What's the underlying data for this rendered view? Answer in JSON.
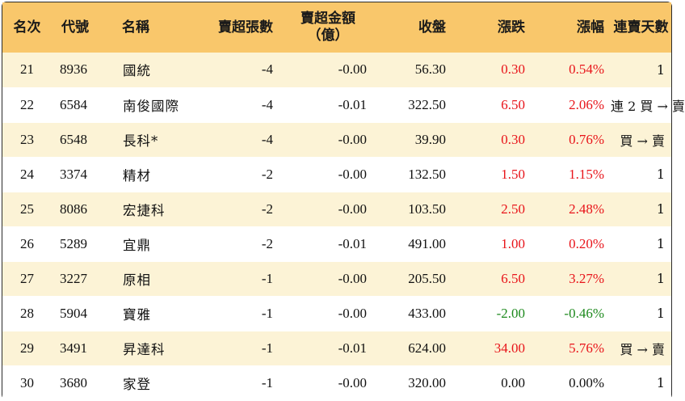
{
  "header": {
    "rank": "名次",
    "code": "代號",
    "name": "名稱",
    "net_sell_lots": "賣超張數",
    "net_sell_amount_line1": "賣超金額",
    "net_sell_amount_line2": "（億）",
    "close": "收盤",
    "change": "漲跌",
    "change_pct": "漲幅",
    "streak": "連賣天數"
  },
  "colors": {
    "header_bg": "#f9c76b",
    "row_alt_bg": "#fcf3d6",
    "up": "#e8141a",
    "down": "#1e8a1e"
  },
  "rows": [
    {
      "rank": "21",
      "code": "8936",
      "name": "國統",
      "lots": "-4",
      "amount": "-0.00",
      "close": "56.30",
      "change": "0.30",
      "pct": "0.54%",
      "streak": "1",
      "dir": "up"
    },
    {
      "rank": "22",
      "code": "6584",
      "name": "南俊國際",
      "lots": "-4",
      "amount": "-0.01",
      "close": "322.50",
      "change": "6.50",
      "pct": "2.06%",
      "streak": "連 2 買 → 賣",
      "dir": "up"
    },
    {
      "rank": "23",
      "code": "6548",
      "name": "長科*",
      "lots": "-4",
      "amount": "-0.00",
      "close": "39.90",
      "change": "0.30",
      "pct": "0.76%",
      "streak": "買 → 賣",
      "dir": "up"
    },
    {
      "rank": "24",
      "code": "3374",
      "name": "精材",
      "lots": "-2",
      "amount": "-0.00",
      "close": "132.50",
      "change": "1.50",
      "pct": "1.15%",
      "streak": "1",
      "dir": "up"
    },
    {
      "rank": "25",
      "code": "8086",
      "name": "宏捷科",
      "lots": "-2",
      "amount": "-0.00",
      "close": "103.50",
      "change": "2.50",
      "pct": "2.48%",
      "streak": "1",
      "dir": "up"
    },
    {
      "rank": "26",
      "code": "5289",
      "name": "宜鼎",
      "lots": "-2",
      "amount": "-0.01",
      "close": "491.00",
      "change": "1.00",
      "pct": "0.20%",
      "streak": "1",
      "dir": "up"
    },
    {
      "rank": "27",
      "code": "3227",
      "name": "原相",
      "lots": "-1",
      "amount": "-0.00",
      "close": "205.50",
      "change": "6.50",
      "pct": "3.27%",
      "streak": "1",
      "dir": "up"
    },
    {
      "rank": "28",
      "code": "5904",
      "name": "寶雅",
      "lots": "-1",
      "amount": "-0.00",
      "close": "433.00",
      "change": "-2.00",
      "pct": "-0.46%",
      "streak": "1",
      "dir": "down"
    },
    {
      "rank": "29",
      "code": "3491",
      "name": "昇達科",
      "lots": "-1",
      "amount": "-0.01",
      "close": "624.00",
      "change": "34.00",
      "pct": "5.76%",
      "streak": "買 → 賣",
      "dir": "up"
    },
    {
      "rank": "30",
      "code": "3680",
      "name": "家登",
      "lots": "-1",
      "amount": "-0.00",
      "close": "320.00",
      "change": "0.00",
      "pct": "0.00%",
      "streak": "1",
      "dir": "flat"
    }
  ]
}
